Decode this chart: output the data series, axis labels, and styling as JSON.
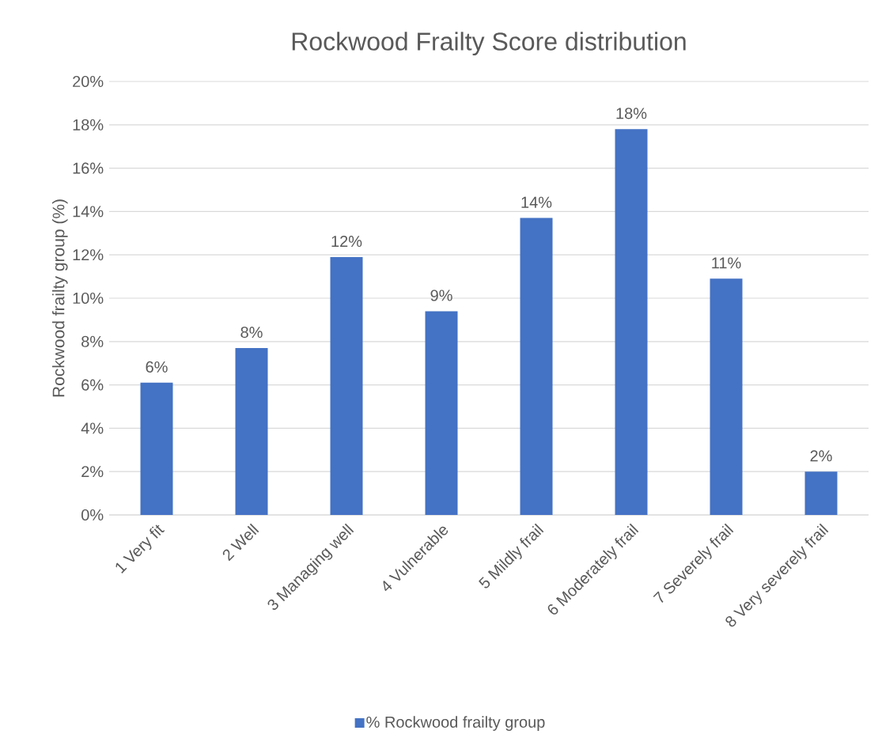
{
  "chart_data": {
    "type": "bar",
    "title": "Rockwood Frailty Score distribution",
    "ylabel": "Rockwood frailty group (%)",
    "categories": [
      "1 Very fit",
      "2 Well",
      "3 Managing well",
      "4 Vulnerable",
      "5 Mildly frail",
      "6 Moderately frail",
      "7 Severely frail",
      "8 Very severely frail"
    ],
    "series": [
      {
        "name": "% Rockwood frailty group",
        "color": "#4472c4",
        "values": [
          6.1,
          7.7,
          11.9,
          9.4,
          13.7,
          17.8,
          10.9,
          2.0
        ],
        "value_labels": [
          "6%",
          "8%",
          "12%",
          "9%",
          "14%",
          "18%",
          "11%",
          "2%"
        ]
      }
    ],
    "ylim": [
      0,
      20
    ],
    "yticks": [
      {
        "value": 0,
        "label": "0%"
      },
      {
        "value": 2,
        "label": "2%"
      },
      {
        "value": 4,
        "label": "4%"
      },
      {
        "value": 6,
        "label": "6%"
      },
      {
        "value": 8,
        "label": "8%"
      },
      {
        "value": 10,
        "label": "10%"
      },
      {
        "value": 12,
        "label": "12%"
      },
      {
        "value": 14,
        "label": "14%"
      },
      {
        "value": 16,
        "label": "16%"
      },
      {
        "value": 18,
        "label": "18%"
      },
      {
        "value": 20,
        "label": "20%"
      }
    ],
    "grid": "y",
    "legend": "bottom"
  }
}
